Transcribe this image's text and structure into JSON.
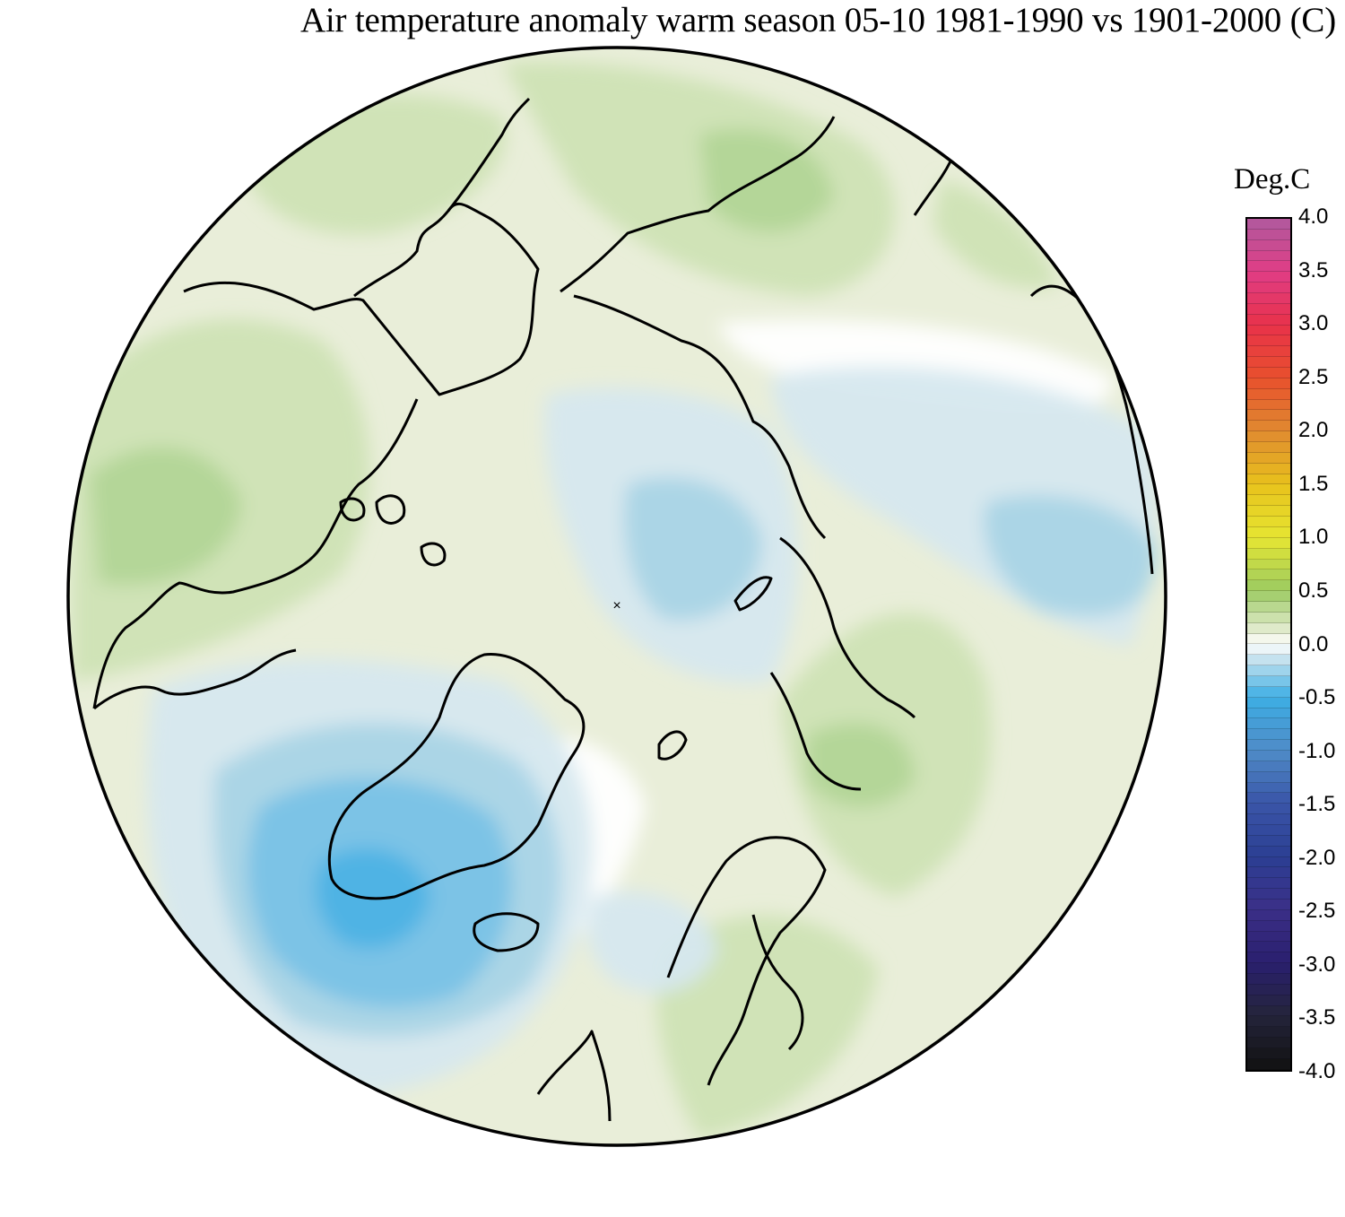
{
  "title": "Air temperature anomaly warm season 05-10 1981-1990 vs 1901-2000 (C)",
  "legend": {
    "unit_label": "Deg.C",
    "range": [
      -4.0,
      4.0
    ],
    "ticks": [
      "4.0",
      "3.5",
      "3.0",
      "2.5",
      "2.0",
      "1.5",
      "1.0",
      "0.5",
      "0.0",
      "-0.5",
      "-1.0",
      "-1.5",
      "-2.0",
      "-2.5",
      "-3.0",
      "-3.5",
      "-4.0"
    ],
    "color_stops": [
      {
        "value": 4.0,
        "color": "#b05a9e"
      },
      {
        "value": 3.5,
        "color": "#e03d86"
      },
      {
        "value": 3.0,
        "color": "#e8324a"
      },
      {
        "value": 2.5,
        "color": "#e8502d"
      },
      {
        "value": 2.0,
        "color": "#e08a30"
      },
      {
        "value": 1.5,
        "color": "#e8c21c"
      },
      {
        "value": 1.0,
        "color": "#e6e632"
      },
      {
        "value": 0.5,
        "color": "#9ccb62"
      },
      {
        "value": 0.1,
        "color": "#e9eed9"
      },
      {
        "value": 0.0,
        "color": "#ffffff"
      },
      {
        "value": -0.1,
        "color": "#d9eaf0"
      },
      {
        "value": -0.5,
        "color": "#3daee4"
      },
      {
        "value": -1.0,
        "color": "#4f8cc8"
      },
      {
        "value": -1.5,
        "color": "#3a55a8"
      },
      {
        "value": -2.0,
        "color": "#2c3f93"
      },
      {
        "value": -2.5,
        "color": "#3b2f88"
      },
      {
        "value": -3.0,
        "color": "#2a1f6e"
      },
      {
        "value": -3.5,
        "color": "#24243a"
      },
      {
        "value": -4.0,
        "color": "#111111"
      }
    ]
  },
  "map": {
    "projection": "north polar stereographic",
    "field_colors": {
      "land_outline": "#000000",
      "strong_positive": "#b3d697",
      "positive": "#cfe3b5",
      "weak_positive": "#e9eed9",
      "neutral": "#ffffff",
      "weak_negative": "#d6e8ef",
      "negative": "#a9d4e6",
      "strong_negative": "#78c2e6",
      "strongest_negative": "#4eb2e4"
    }
  }
}
